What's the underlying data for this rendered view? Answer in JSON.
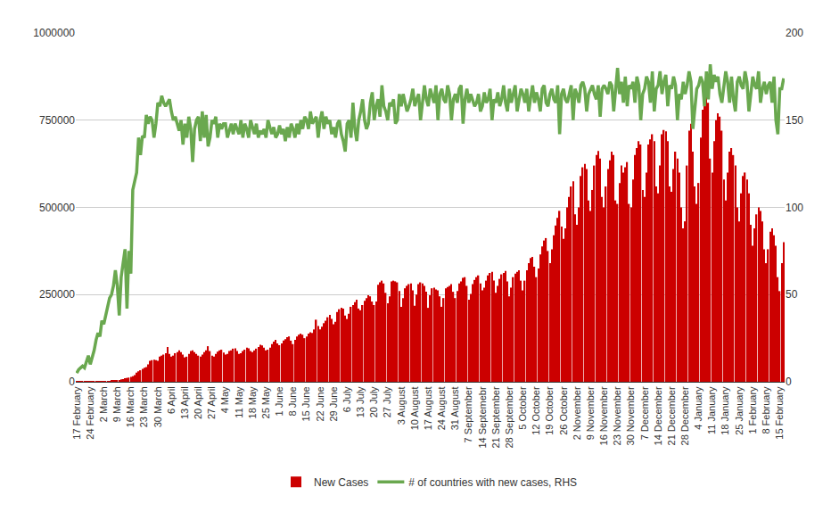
{
  "chart_data": {
    "type": "bar",
    "categories": [
      "17 February",
      null,
      null,
      null,
      null,
      null,
      null,
      "24 February",
      null,
      null,
      null,
      null,
      null,
      null,
      "2 March",
      null,
      null,
      null,
      null,
      null,
      null,
      "9 March",
      null,
      null,
      null,
      null,
      null,
      null,
      "16 March",
      null,
      null,
      null,
      null,
      null,
      null,
      "23 March",
      null,
      null,
      null,
      null,
      null,
      null,
      "30 March",
      null,
      null,
      null,
      null,
      null,
      null,
      "6 April",
      null,
      null,
      null,
      null,
      null,
      null,
      "13 April",
      null,
      null,
      null,
      null,
      null,
      null,
      "20 April",
      null,
      null,
      null,
      null,
      null,
      null,
      "27 April",
      null,
      null,
      null,
      null,
      null,
      null,
      "4 May",
      null,
      null,
      null,
      null,
      null,
      null,
      "11 May",
      null,
      null,
      null,
      null,
      null,
      null,
      "18 May",
      null,
      null,
      null,
      null,
      null,
      null,
      "25 May",
      null,
      null,
      null,
      null,
      null,
      null,
      "1 June",
      null,
      null,
      null,
      null,
      null,
      null,
      "8 June",
      null,
      null,
      null,
      null,
      null,
      null,
      "15 June",
      null,
      null,
      null,
      null,
      null,
      null,
      "22 June",
      null,
      null,
      null,
      null,
      null,
      null,
      "29 June",
      null,
      null,
      null,
      null,
      null,
      null,
      "6 July",
      null,
      null,
      null,
      null,
      null,
      null,
      "13 July",
      null,
      null,
      null,
      null,
      null,
      null,
      "20 July",
      null,
      null,
      null,
      null,
      null,
      null,
      "27 July",
      null,
      null,
      null,
      null,
      null,
      null,
      "3 August",
      null,
      null,
      null,
      null,
      null,
      null,
      "10 August",
      null,
      null,
      null,
      null,
      null,
      null,
      "17 August",
      null,
      null,
      null,
      null,
      null,
      null,
      "24 August",
      null,
      null,
      null,
      null,
      null,
      null,
      "31 August",
      null,
      null,
      null,
      null,
      null,
      null,
      "7 September",
      null,
      null,
      null,
      null,
      null,
      null,
      "14 Septemebr",
      null,
      null,
      null,
      null,
      null,
      null,
      "21 September",
      null,
      null,
      null,
      null,
      null,
      null,
      "28 September",
      null,
      null,
      null,
      null,
      null,
      null,
      "5 October",
      null,
      null,
      null,
      null,
      null,
      null,
      "12 October",
      null,
      null,
      null,
      null,
      null,
      null,
      "19 October",
      null,
      null,
      null,
      null,
      null,
      null,
      "26 October",
      null,
      null,
      null,
      null,
      null,
      null,
      "2 November",
      null,
      null,
      null,
      null,
      null,
      null,
      "9 November",
      null,
      null,
      null,
      null,
      null,
      null,
      "16 November",
      null,
      null,
      null,
      null,
      null,
      null,
      "23 November",
      null,
      null,
      null,
      null,
      null,
      null,
      "30 November",
      null,
      null,
      null,
      null,
      null,
      null,
      "7 December",
      null,
      null,
      null,
      null,
      null,
      null,
      "14 December",
      null,
      null,
      null,
      null,
      null,
      null,
      "21 December",
      null,
      null,
      null,
      null,
      null,
      null,
      "28 December",
      null,
      null,
      null,
      null,
      null,
      null,
      "4 January",
      null,
      null,
      null,
      null,
      null,
      null,
      "11 January",
      null,
      null,
      null,
      null,
      null,
      null,
      "18 January",
      null,
      null,
      null,
      null,
      null,
      null,
      "25 January",
      null,
      null,
      null,
      null,
      null,
      null,
      "1 February",
      null,
      null,
      null,
      null,
      null,
      null,
      "8 February",
      null,
      null,
      null,
      null,
      null,
      null,
      "15 February",
      null,
      null
    ],
    "series": [
      {
        "name": "New Cases",
        "type": "bar",
        "color": "#cc0000",
        "values": [
          2000,
          1900,
          500,
          600,
          1000,
          1500,
          1000,
          600,
          900,
          900,
          1200,
          1400,
          1900,
          2000,
          1800,
          2300,
          2200,
          2500,
          2900,
          3900,
          3700,
          4000,
          4500,
          7000,
          7500,
          10000,
          11000,
          12000,
          14000,
          16000,
          19000,
          26000,
          30000,
          33000,
          37000,
          40000,
          42000,
          50000,
          60000,
          62000,
          63000,
          62000,
          60000,
          72000,
          75000,
          78000,
          82000,
          100000,
          80000,
          72000,
          75000,
          82000,
          85000,
          90000,
          85000,
          78000,
          70000,
          72000,
          80000,
          88000,
          90000,
          85000,
          80000,
          75000,
          72000,
          78000,
          85000,
          90000,
          102000,
          88000,
          75000,
          72000,
          80000,
          86000,
          90000,
          92000,
          84000,
          78000,
          80000,
          88000,
          90000,
          95000,
          96000,
          88000,
          80000,
          82000,
          88000,
          92000,
          98000,
          96000,
          88000,
          85000,
          90000,
          95000,
          100000,
          106000,
          104000,
          98000,
          90000,
          92000,
          98000,
          108000,
          115000,
          120000,
          110000,
          105000,
          110000,
          118000,
          122000,
          128000,
          130000,
          118000,
          108000,
          120000,
          130000,
          135000,
          138000,
          135000,
          125000,
          130000,
          138000,
          142000,
          140000,
          150000,
          178000,
          160000,
          150000,
          158000,
          168000,
          175000,
          185000,
          192000,
          180000,
          165000,
          172000,
          200000,
          208000,
          212000,
          210000,
          190000,
          180000,
          195000,
          215000,
          220000,
          228000,
          235000,
          210000,
          205000,
          220000,
          232000,
          240000,
          248000,
          245000,
          230000,
          220000,
          230000,
          278000,
          285000,
          290000,
          282000,
          255000,
          225000,
          245000,
          288000,
          290000,
          288000,
          285000,
          260000,
          215000,
          240000,
          268000,
          275000,
          280000,
          282000,
          262000,
          218000,
          250000,
          280000,
          285000,
          282000,
          275000,
          258000,
          212000,
          248000,
          268000,
          270000,
          265000,
          262000,
          245000,
          215000,
          240000,
          268000,
          272000,
          275000,
          280000,
          258000,
          240000,
          260000,
          282000,
          288000,
          298000,
          300000,
          275000,
          235000,
          252000,
          280000,
          292000,
          300000,
          305000,
          282000,
          262000,
          270000,
          290000,
          305000,
          312000,
          315000,
          290000,
          255000,
          275000,
          295000,
          308000,
          312000,
          318000,
          288000,
          245000,
          270000,
          300000,
          310000,
          315000,
          320000,
          290000,
          262000,
          290000,
          320000,
          340000,
          355000,
          358000,
          330000,
          300000,
          325000,
          365000,
          388000,
          405000,
          412000,
          375000,
          340000,
          380000,
          420000,
          448000,
          470000,
          490000,
          445000,
          410000,
          440000,
          500000,
          530000,
          560000,
          575000,
          480000,
          450000,
          500000,
          590000,
          615000,
          625000,
          610000,
          520000,
          490000,
          550000,
          620000,
          650000,
          662000,
          640000,
          530000,
          500000,
          560000,
          610000,
          635000,
          660000,
          650000,
          520000,
          510000,
          570000,
          620000,
          600000,
          615000,
          630000,
          510000,
          500000,
          580000,
          650000,
          670000,
          690000,
          680000,
          550000,
          530000,
          600000,
          680000,
          695000,
          710000,
          690000,
          560000,
          540000,
          620000,
          710000,
          722000,
          718000,
          690000,
          560000,
          545000,
          610000,
          660000,
          640000,
          600000,
          500000,
          440000,
          460000,
          620000,
          720000,
          740000,
          660000,
          560000,
          510000,
          570000,
          700000,
          780000,
          820000,
          840000,
          800000,
          640000,
          600000,
          690000,
          750000,
          770000,
          760000,
          720000,
          580000,
          520000,
          600000,
          660000,
          670000,
          650000,
          620000,
          500000,
          460000,
          540000,
          590000,
          600000,
          580000,
          540000,
          450000,
          390000,
          440000,
          480000,
          500000,
          490000,
          460000,
          380000,
          340000,
          380000,
          430000,
          440000,
          420000,
          390000,
          300000,
          260000,
          340000,
          400000
        ]
      },
      {
        "name": "# of countries with new cases, RHS",
        "type": "line",
        "color": "#6aa84f",
        "axis": "y2",
        "values": [
          5,
          7,
          8,
          9,
          8,
          12,
          15,
          10,
          14,
          18,
          24,
          28,
          26,
          35,
          33,
          38,
          42,
          48,
          50,
          55,
          64,
          55,
          38,
          60,
          68,
          76,
          42,
          75,
          62,
          110,
          115,
          120,
          140,
          130,
          141,
          140,
          153,
          148,
          152,
          150,
          140,
          148,
          160,
          158,
          164,
          160,
          158,
          160,
          162,
          155,
          150,
          152,
          148,
          144,
          150,
          136,
          148,
          140,
          152,
          145,
          126,
          145,
          150,
          152,
          138,
          155,
          140,
          153,
          135,
          140,
          150,
          148,
          152,
          140,
          148,
          145,
          148,
          148,
          140,
          145,
          148,
          142,
          148,
          145,
          142,
          150,
          140,
          148,
          145,
          140,
          150,
          146,
          142,
          148,
          140,
          144,
          142,
          145,
          140,
          150,
          145,
          142,
          146,
          140,
          142,
          147,
          142,
          145,
          138,
          146,
          140,
          148,
          145,
          140,
          148,
          142,
          150,
          145,
          152,
          150,
          145,
          155,
          148,
          150,
          152,
          140,
          150,
          155,
          145,
          152,
          148,
          150,
          142,
          146,
          140,
          148,
          150,
          142,
          138,
          132,
          148,
          150,
          140,
          160,
          145,
          138,
          150,
          155,
          162,
          150,
          145,
          148,
          160,
          166,
          150,
          158,
          162,
          152,
          170,
          158,
          155,
          150,
          160,
          158,
          162,
          148,
          150,
          165,
          158,
          165,
          160,
          155,
          158,
          162,
          168,
          158,
          162,
          165,
          150,
          160,
          170,
          162,
          158,
          168,
          163,
          160,
          170,
          150,
          165,
          168,
          162,
          160,
          170,
          165,
          150,
          162,
          165,
          160,
          168,
          170,
          148,
          162,
          168,
          160,
          165,
          162,
          158,
          160,
          165,
          155,
          158,
          166,
          160,
          162,
          168,
          150,
          162,
          160,
          166,
          158,
          162,
          170,
          160,
          155,
          168,
          160,
          165,
          170,
          155,
          162,
          168,
          165,
          160,
          168,
          155,
          163,
          170,
          160,
          166,
          162,
          155,
          168,
          170,
          160,
          158,
          165,
          168,
          162,
          160,
          170,
          142,
          165,
          168,
          162,
          160,
          165,
          170,
          150,
          168,
          165,
          160,
          170,
          172,
          168,
          155,
          165,
          168,
          170,
          165,
          162,
          170,
          152,
          168,
          170,
          168,
          165,
          172,
          170,
          155,
          168,
          180,
          165,
          172,
          160,
          175,
          158,
          170,
          168,
          172,
          160,
          175,
          170,
          150,
          165,
          168,
          175,
          172,
          160,
          178,
          155,
          168,
          170,
          178,
          165,
          172,
          176,
          158,
          170,
          168,
          175,
          170,
          150,
          165,
          162,
          172,
          165,
          170,
          178,
          172,
          145,
          155,
          168,
          170,
          175,
          172,
          158,
          178,
          162,
          182,
          168,
          176,
          172,
          175,
          165,
          160,
          170,
          178,
          172,
          160,
          175,
          162,
          155,
          172,
          175,
          170,
          168,
          178,
          172,
          155,
          165,
          175,
          170,
          168,
          178,
          160,
          168,
          172,
          165,
          170,
          172,
          160,
          175,
          150,
          142,
          168,
          168,
          174
        ]
      }
    ],
    "ylim": [
      0,
      1000000
    ],
    "yticks": [
      0,
      250000,
      500000,
      750000,
      1000000
    ],
    "y2lim": [
      0,
      200
    ],
    "y2ticks": [
      0,
      50,
      100,
      150,
      200
    ],
    "grid": true,
    "legend": "bottom"
  }
}
